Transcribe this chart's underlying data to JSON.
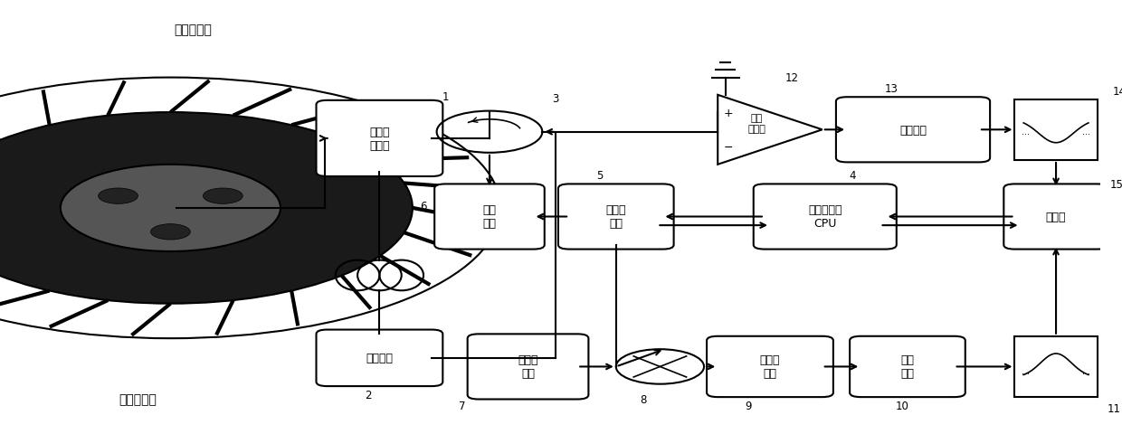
{
  "title": "",
  "bg_color": "#ffffff",
  "line_color": "#000000",
  "box_color": "#ffffff",
  "box_edge": "#000000",
  "text_color": "#000000",
  "figsize": [
    12.4,
    4.81
  ],
  "dpi": 100,
  "labels": {
    "engine_casing": "发动机机匣",
    "engine_rotor": "发动机转子",
    "sensor_box": "谐振腔\n传感器",
    "coax_cable": "同轴线缆",
    "power_amp": "功率\n放人",
    "circulator": "",
    "vco": "压控振\n荡器",
    "rf_amp": "射频\n放大器",
    "det_net": "检波网络",
    "cpu": "中央处理器\nCPU",
    "ref_source": "基准信\n号源",
    "mixer": "",
    "lpf": "低通滤\n波器",
    "sel_net": "选频\n网络",
    "timer": "计时器",
    "notch_filter": "",
    "bandpass_filter": ""
  },
  "numbers": {
    "sensor": "1",
    "coax": "2",
    "circulator": "3",
    "cpu": "4",
    "vco": "5",
    "power_amp": "6",
    "ref_source": "7",
    "mixer": "8",
    "lpf": "9",
    "sel_net": "10",
    "bp_filter": "11",
    "rf_amp": "12",
    "det_net": "13",
    "notch": "14",
    "timer": "15"
  },
  "box_positions": {
    "sensor": [
      0.34,
      0.62,
      0.1,
      0.13
    ],
    "coax": [
      0.29,
      0.11,
      0.11,
      0.11
    ],
    "power_amp": [
      0.43,
      0.44,
      0.075,
      0.12
    ],
    "vco": [
      0.53,
      0.44,
      0.08,
      0.12
    ],
    "rf_amp_tri": [
      0.64,
      0.56,
      0.1,
      0.15
    ],
    "det_net": [
      0.74,
      0.56,
      0.11,
      0.12
    ],
    "notch": [
      0.88,
      0.54,
      0.08,
      0.13
    ],
    "cpu": [
      0.64,
      0.42,
      0.105,
      0.13
    ],
    "timer": [
      0.88,
      0.38,
      0.08,
      0.13
    ],
    "ref_source": [
      0.42,
      0.09,
      0.08,
      0.13
    ],
    "mixer": [
      0.53,
      0.09,
      0.05,
      0.1
    ],
    "lpf": [
      0.63,
      0.08,
      0.095,
      0.12
    ],
    "sel_net": [
      0.74,
      0.08,
      0.08,
      0.12
    ],
    "bp_filter": [
      0.88,
      0.065,
      0.08,
      0.13
    ]
  }
}
